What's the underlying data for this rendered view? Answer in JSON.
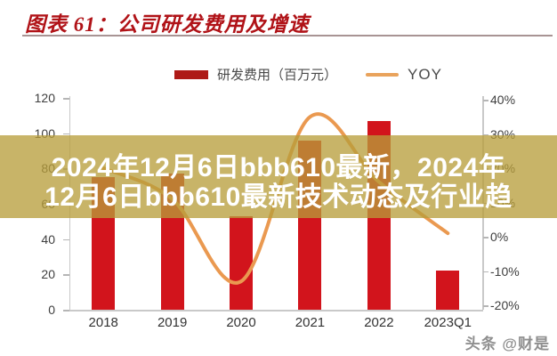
{
  "header": {
    "title": "图表 61：公司研发费用及增速"
  },
  "legend": {
    "items": [
      {
        "label": "研发费用（百万元）",
        "swatch": "bar-swatch",
        "color": "#ae1a17"
      },
      {
        "label": "YOY",
        "swatch": "line-swatch",
        "color": "#e9a35c"
      }
    ]
  },
  "overlay": {
    "line1": "2024年12月6日bbb610最新，2024年",
    "line2": "12月6日bbb610最新技术动态及行业趋",
    "bg_color": "#b79d3a",
    "text_color": "#ffffff"
  },
  "watermark": {
    "text": "头条 @财是"
  },
  "colors": {
    "bar": "#d2141c",
    "line": "#ea9950",
    "title": "#b01217",
    "axis_text": "#3f3f3f"
  },
  "chart_data": {
    "type": "bar",
    "title": "公司研发费用及增速",
    "categories": [
      "2018",
      "2019",
      "2020",
      "2021",
      "2022",
      "2023Q1"
    ],
    "series": [
      {
        "name": "研发费用（百万元）",
        "type": "bar",
        "axis": "left",
        "values": [
          75,
          77,
          53,
          96,
          107,
          22
        ],
        "color": "#d2141c"
      },
      {
        "name": "YOY",
        "type": "line",
        "axis": "right",
        "values": [
          20,
          11,
          -13,
          35,
          16,
          1
        ],
        "unit": "%",
        "color": "#ea9950"
      }
    ],
    "left_axis": {
      "ticks": [
        0,
        20,
        40,
        60,
        80,
        100,
        120
      ],
      "range": [
        0,
        120
      ]
    },
    "right_axis": {
      "ticks": [
        "-20%",
        "-10%",
        "0%",
        "10%",
        "20%",
        "30%",
        "40%"
      ],
      "range": [
        -20,
        40
      ]
    },
    "grid": false,
    "legend_position": "top"
  }
}
